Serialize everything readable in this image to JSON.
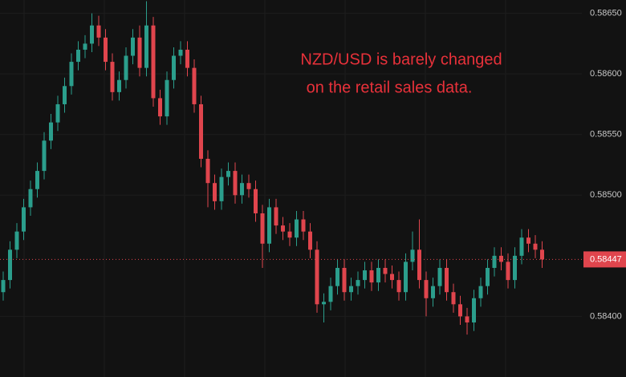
{
  "chart_data": {
    "type": "candlestick",
    "annotations": [
      "NZD/USD is barely changed",
      "on the retail sales data."
    ],
    "up_color": "#2b9e8c",
    "down_color": "#e0454d",
    "ylim": [
      0.5835,
      0.58661
    ],
    "yticks": [
      {
        "value": 0.584,
        "label": "0.58400"
      },
      {
        "value": 0.585,
        "label": "0.58500"
      },
      {
        "value": 0.5855,
        "label": "0.58550"
      },
      {
        "value": 0.586,
        "label": "0.58600"
      },
      {
        "value": 0.5865,
        "label": "0.58650"
      }
    ],
    "grid": true,
    "price_line": {
      "value": 0.58447,
      "label": "0.58447",
      "color": "#e0454d"
    },
    "open": [
      0.5842,
      0.5843,
      0.58455,
      0.5847,
      0.5849,
      0.58505,
      0.5852,
      0.58545,
      0.5856,
      0.58575,
      0.5859,
      0.5861,
      0.5862,
      0.58625,
      0.5864,
      0.5863,
      0.5861,
      0.58585,
      0.58595,
      0.58615,
      0.5863,
      0.58605,
      0.5864,
      0.5858,
      0.58565,
      0.58595,
      0.58615,
      0.5862,
      0.58605,
      0.58575,
      0.5853,
      0.5851,
      0.58495,
      0.58515,
      0.5852,
      0.585,
      0.5851,
      0.58505,
      0.58485,
      0.5846,
      0.5849,
      0.58475,
      0.5847,
      0.58465,
      0.5848,
      0.5847,
      0.58455,
      0.5841,
      0.58412,
      0.58425,
      0.5844,
      0.5842,
      0.58425,
      0.5843,
      0.58438,
      0.58428,
      0.5844,
      0.58435,
      0.5843,
      0.5842,
      0.58445,
      0.58455,
      0.5843,
      0.58415,
      0.58425,
      0.5844,
      0.5842,
      0.5841,
      0.584,
      0.58395,
      0.58415,
      0.58425,
      0.5844,
      0.5845,
      0.58445,
      0.5843,
      0.5845,
      0.58465,
      0.5846,
      0.58455
    ],
    "high": [
      0.58437,
      0.58462,
      0.58477,
      0.58497,
      0.58512,
      0.58527,
      0.58552,
      0.58567,
      0.58582,
      0.58597,
      0.58617,
      0.58627,
      0.58632,
      0.5865,
      0.58648,
      0.58637,
      0.58617,
      0.58602,
      0.58622,
      0.58637,
      0.5864,
      0.5866,
      0.58647,
      0.58587,
      0.58602,
      0.58622,
      0.58627,
      0.58627,
      0.58612,
      0.58582,
      0.58537,
      0.58517,
      0.58522,
      0.58527,
      0.58527,
      0.58517,
      0.58517,
      0.58512,
      0.58492,
      0.58497,
      0.58497,
      0.58482,
      0.58477,
      0.58487,
      0.58487,
      0.58477,
      0.58462,
      0.58419,
      0.58432,
      0.58447,
      0.58447,
      0.58432,
      0.58437,
      0.58445,
      0.58445,
      0.58447,
      0.58447,
      0.58442,
      0.58437,
      0.58452,
      0.5847,
      0.5848,
      0.58437,
      0.58432,
      0.58447,
      0.58447,
      0.58427,
      0.58417,
      0.58407,
      0.58422,
      0.58432,
      0.58447,
      0.58457,
      0.58457,
      0.58452,
      0.58457,
      0.58472,
      0.58472,
      0.58467,
      0.58462
    ],
    "low": [
      0.58413,
      0.58423,
      0.58448,
      0.58463,
      0.58483,
      0.58498,
      0.58513,
      0.58538,
      0.58553,
      0.58568,
      0.58583,
      0.58603,
      0.58613,
      0.58618,
      0.58623,
      0.58603,
      0.58578,
      0.58578,
      0.58588,
      0.58608,
      0.58598,
      0.58598,
      0.58573,
      0.58558,
      0.58558,
      0.58588,
      0.58608,
      0.58598,
      0.58568,
      0.58523,
      0.5849,
      0.58488,
      0.58488,
      0.58508,
      0.58493,
      0.58493,
      0.58498,
      0.58478,
      0.5844,
      0.58453,
      0.58468,
      0.58463,
      0.58458,
      0.58458,
      0.58463,
      0.58448,
      0.58403,
      0.58395,
      0.58405,
      0.58418,
      0.58413,
      0.58413,
      0.58418,
      0.58423,
      0.58421,
      0.58421,
      0.58428,
      0.58423,
      0.58413,
      0.58413,
      0.58438,
      0.58423,
      0.584,
      0.58408,
      0.58418,
      0.58413,
      0.58403,
      0.58393,
      0.58385,
      0.58388,
      0.58408,
      0.58418,
      0.58433,
      0.58438,
      0.58423,
      0.58423,
      0.58443,
      0.58453,
      0.58448,
      0.5844
    ],
    "close": [
      0.5843,
      0.58455,
      0.5847,
      0.5849,
      0.58505,
      0.5852,
      0.58545,
      0.5856,
      0.58575,
      0.5859,
      0.5861,
      0.5862,
      0.58625,
      0.5864,
      0.5863,
      0.5861,
      0.58585,
      0.58595,
      0.58615,
      0.5863,
      0.58605,
      0.5864,
      0.5858,
      0.58565,
      0.58595,
      0.58615,
      0.5862,
      0.58605,
      0.58575,
      0.5853,
      0.5851,
      0.58495,
      0.58515,
      0.5852,
      0.585,
      0.5851,
      0.58505,
      0.58485,
      0.5846,
      0.5849,
      0.58475,
      0.5847,
      0.58465,
      0.5848,
      0.5847,
      0.58455,
      0.5841,
      0.58412,
      0.58425,
      0.5844,
      0.5842,
      0.58425,
      0.5843,
      0.58438,
      0.58428,
      0.5844,
      0.58435,
      0.5843,
      0.5842,
      0.58445,
      0.58455,
      0.5843,
      0.58415,
      0.58425,
      0.5844,
      0.5842,
      0.5841,
      0.584,
      0.58395,
      0.58415,
      0.58425,
      0.5844,
      0.5845,
      0.58445,
      0.5843,
      0.5845,
      0.58465,
      0.5846,
      0.58455,
      0.58447
    ]
  }
}
